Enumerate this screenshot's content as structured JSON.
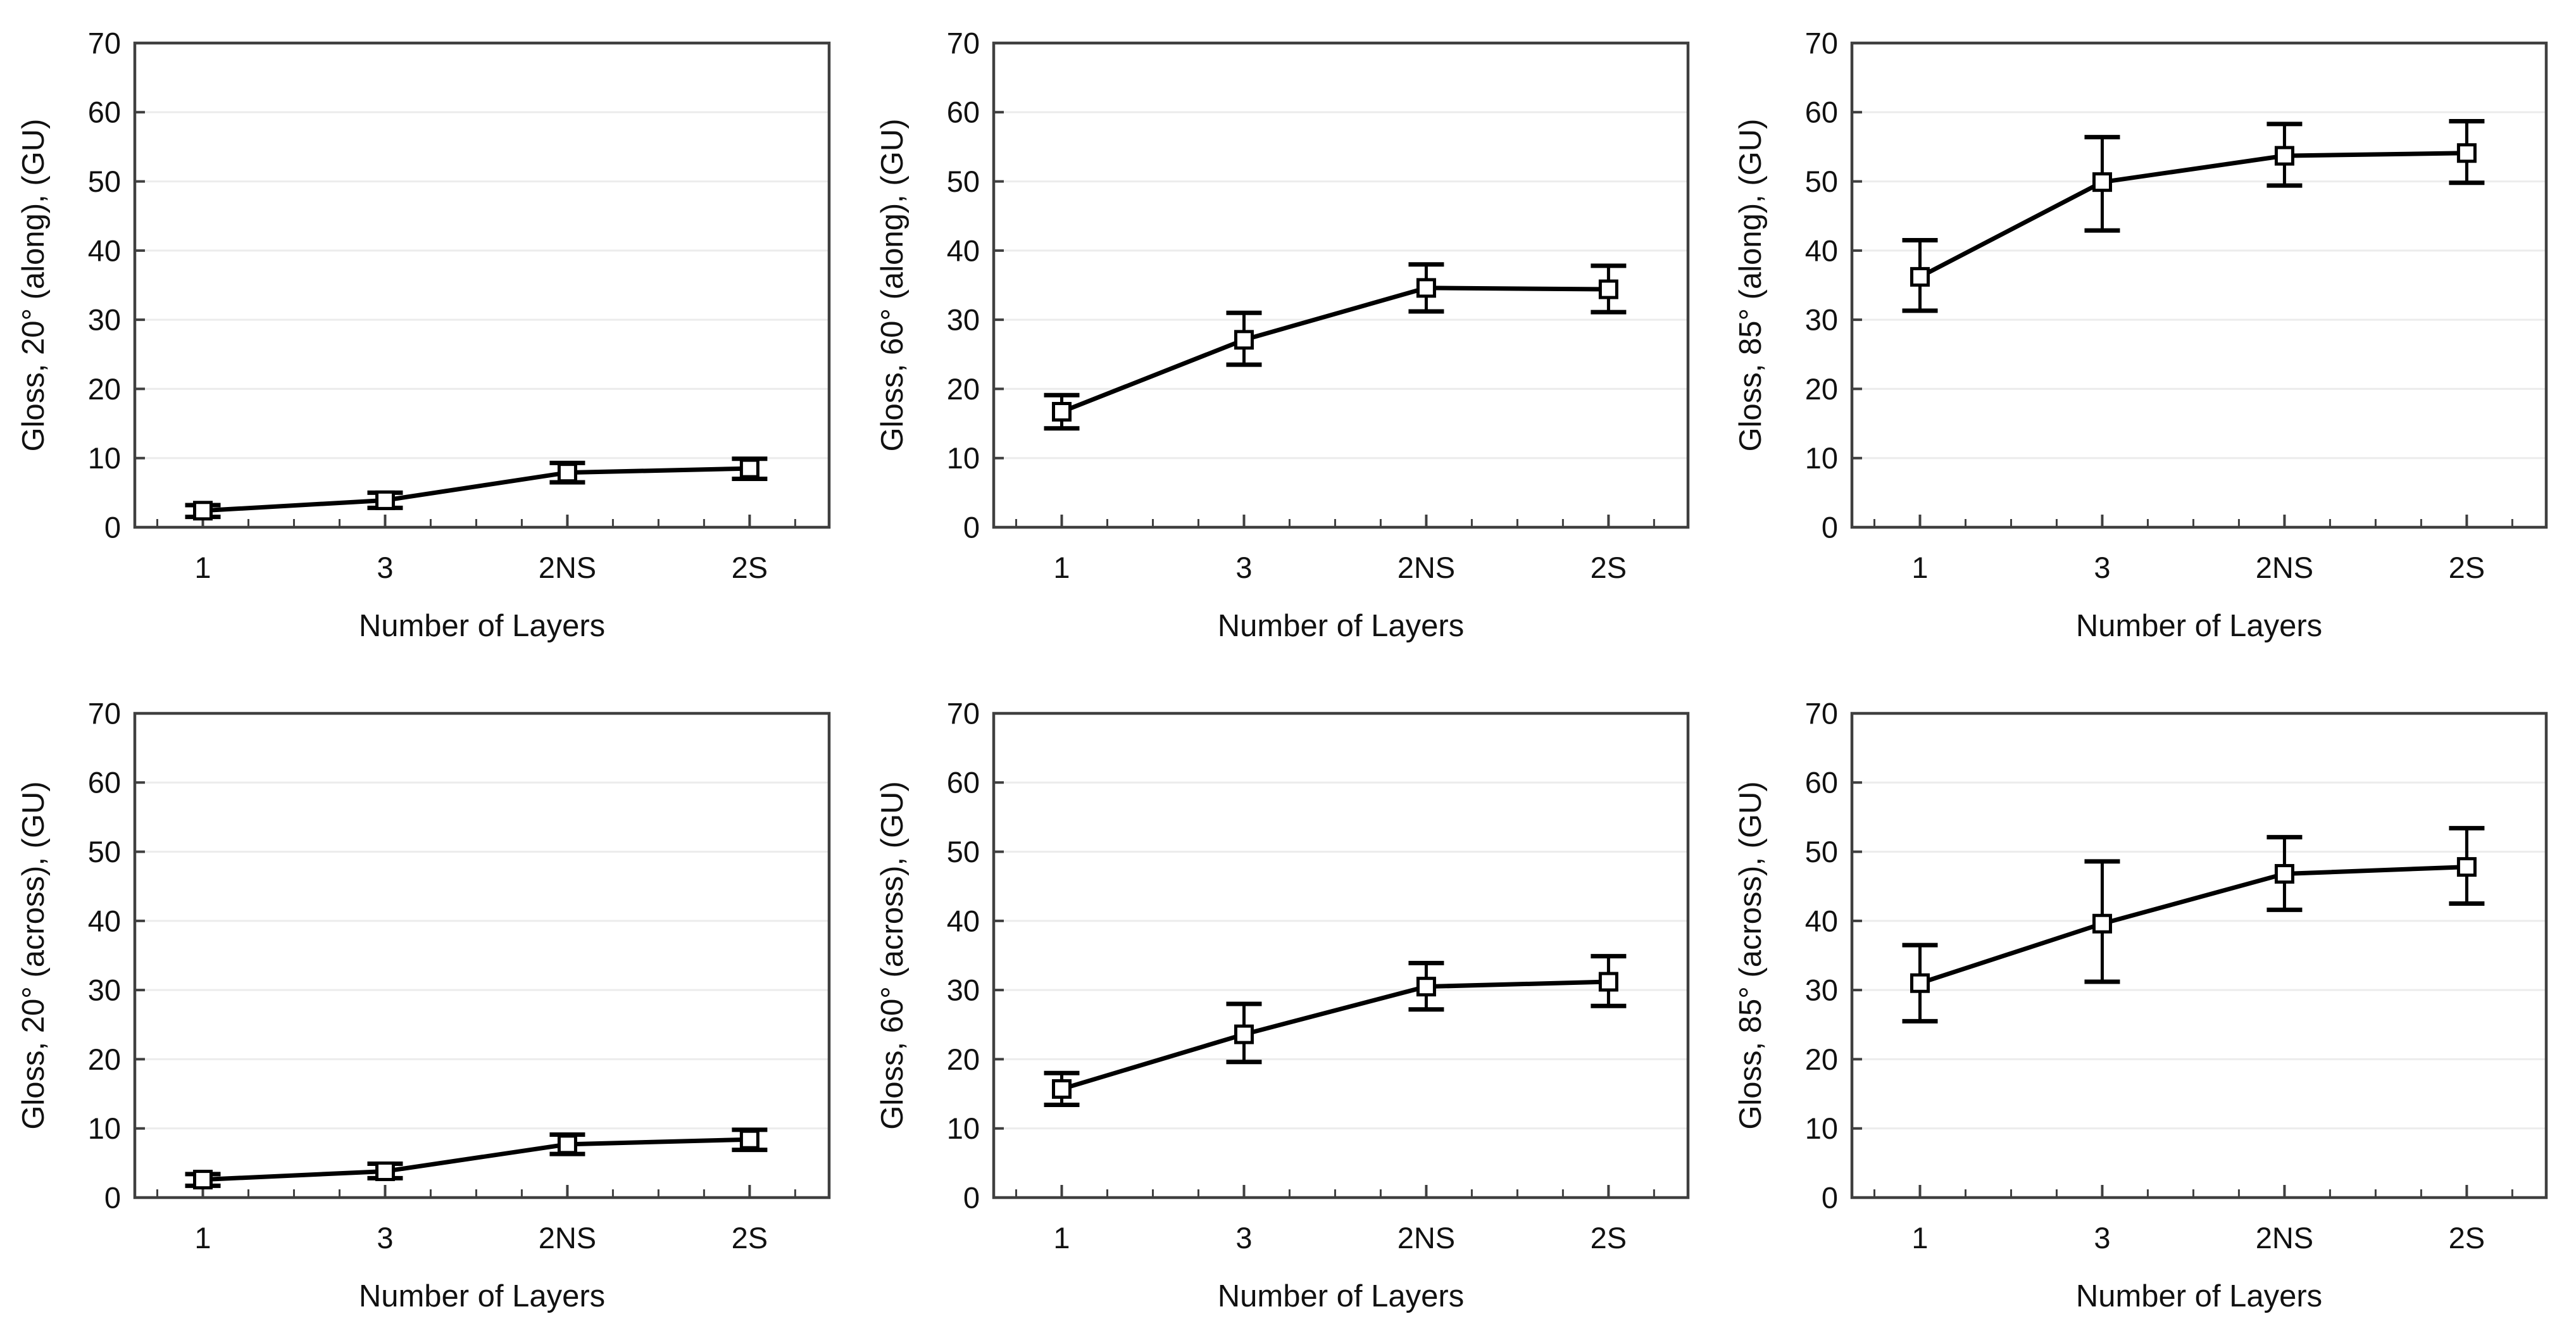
{
  "style": {
    "background": "#ffffff",
    "axis_color": "#3f3f3f",
    "grid_color": "#ececec",
    "data_color": "#000000",
    "text_color": "#111111",
    "marker": "open-square"
  },
  "layout": {
    "rows": 2,
    "cols": 3,
    "grid": "horizontal-only",
    "legend": "none"
  },
  "chart_data": [
    {
      "id": "gloss-20-along",
      "type": "line",
      "title": "",
      "xlabel": "Number of Layers",
      "ylabel": "Gloss, 20° (along), (GU)",
      "categories": [
        "1",
        "3",
        "2NS",
        "2S"
      ],
      "values": [
        2.4,
        3.9,
        7.9,
        8.5
      ],
      "error_low": [
        1.5,
        2.8,
        6.5,
        7.0
      ],
      "error_high": [
        3.2,
        5.0,
        9.3,
        9.9
      ],
      "ylim": [
        0,
        70
      ],
      "ytick_step": 10
    },
    {
      "id": "gloss-60-along",
      "type": "line",
      "title": "",
      "xlabel": "Number of Layers",
      "ylabel": "Gloss, 60° (along), (GU)",
      "categories": [
        "1",
        "3",
        "2NS",
        "2S"
      ],
      "values": [
        16.7,
        27.1,
        34.6,
        34.4
      ],
      "error_low": [
        14.3,
        23.5,
        31.2,
        31.1
      ],
      "error_high": [
        19.1,
        31.0,
        38.0,
        37.8
      ],
      "ylim": [
        0,
        70
      ],
      "ytick_step": 10
    },
    {
      "id": "gloss-85-along",
      "type": "line",
      "title": "",
      "xlabel": "Number of Layers",
      "ylabel": "Gloss, 85° (along), (GU)",
      "categories": [
        "1",
        "3",
        "2NS",
        "2S"
      ],
      "values": [
        36.2,
        49.9,
        53.7,
        54.1
      ],
      "error_low": [
        31.3,
        42.9,
        49.4,
        49.8
      ],
      "error_high": [
        41.5,
        56.4,
        58.3,
        58.7
      ],
      "ylim": [
        0,
        70
      ],
      "ytick_step": 10
    },
    {
      "id": "gloss-20-across",
      "type": "line",
      "title": "",
      "xlabel": "Number of Layers",
      "ylabel": "Gloss, 20° (across), (GU)",
      "categories": [
        "1",
        "3",
        "2NS",
        "2S"
      ],
      "values": [
        2.6,
        3.8,
        7.7,
        8.4
      ],
      "error_low": [
        1.7,
        2.8,
        6.3,
        6.9
      ],
      "error_high": [
        3.4,
        4.9,
        9.1,
        9.8
      ],
      "ylim": [
        0,
        70
      ],
      "ytick_step": 10
    },
    {
      "id": "gloss-60-across",
      "type": "line",
      "title": "",
      "xlabel": "Number of Layers",
      "ylabel": "Gloss, 60° (across), (GU)",
      "categories": [
        "1",
        "3",
        "2NS",
        "2S"
      ],
      "values": [
        15.7,
        23.6,
        30.5,
        31.2
      ],
      "error_low": [
        13.4,
        19.6,
        27.2,
        27.7
      ],
      "error_high": [
        18.0,
        28.0,
        33.9,
        34.9
      ],
      "ylim": [
        0,
        70
      ],
      "ytick_step": 10
    },
    {
      "id": "gloss-85-across",
      "type": "line",
      "title": "",
      "xlabel": "Number of Layers",
      "ylabel": "Gloss, 85° (across), (GU)",
      "categories": [
        "1",
        "3",
        "2NS",
        "2S"
      ],
      "values": [
        31.0,
        39.6,
        46.8,
        47.8
      ],
      "error_low": [
        25.5,
        31.2,
        41.6,
        42.5
      ],
      "error_high": [
        36.5,
        48.6,
        52.1,
        53.4
      ],
      "ylim": [
        0,
        70
      ],
      "ytick_step": 10
    }
  ]
}
